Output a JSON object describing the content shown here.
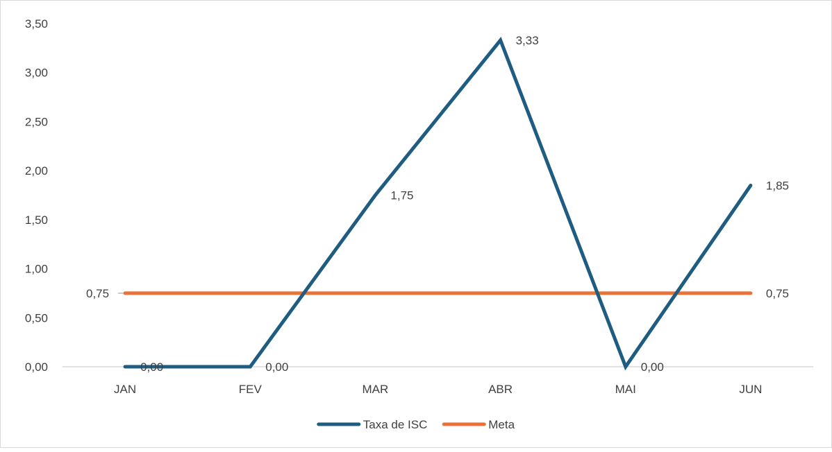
{
  "chart_data": {
    "type": "line",
    "categories": [
      "JAN",
      "FEV",
      "MAR",
      "ABR",
      "MAI",
      "JUN"
    ],
    "series": [
      {
        "name": "Taxa de ISC",
        "values": [
          0.0,
          0.0,
          1.75,
          3.33,
          0.0,
          1.85
        ],
        "labels": [
          "0,00",
          "0,00",
          "1,75",
          "3,33",
          "0,00",
          "1,85"
        ],
        "color": "#1f5c82"
      },
      {
        "name": "Meta",
        "values": [
          0.75,
          0.75,
          0.75,
          0.75,
          0.75,
          0.75
        ],
        "labels": [
          "0,75",
          "",
          "",
          "",
          "",
          "0,75"
        ],
        "color": "#e8733a"
      }
    ],
    "y_ticks": [
      "0,00",
      "0,50",
      "1,00",
      "1,50",
      "2,00",
      "2,50",
      "3,00",
      "3,50"
    ],
    "ylim": [
      0,
      3.5
    ],
    "grid": false,
    "legend": "bottom"
  }
}
